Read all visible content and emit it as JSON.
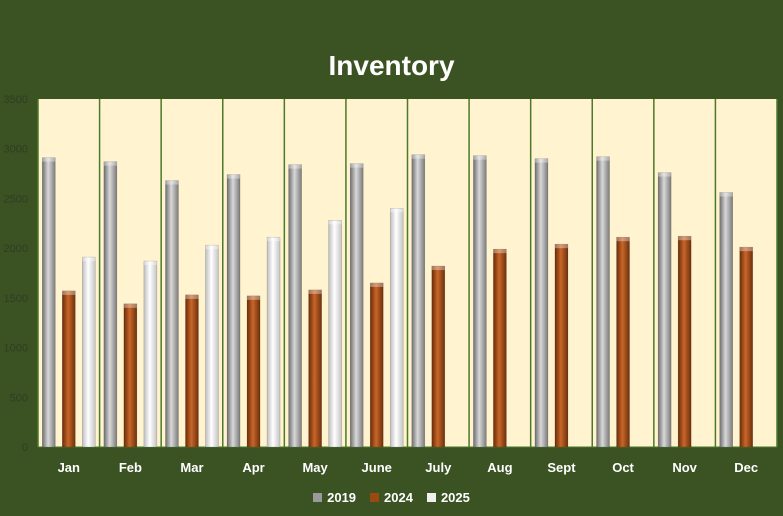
{
  "chart_data": {
    "type": "bar",
    "title": "Inventory",
    "categories": [
      "Jan",
      "Feb",
      "Mar",
      "Apr",
      "May",
      "June",
      "July",
      "Aug",
      "Sept",
      "Oct",
      "Nov",
      "Dec"
    ],
    "series": [
      {
        "name": "2019",
        "color": "#9a9a9a",
        "values": [
          2910,
          2870,
          2680,
          2740,
          2840,
          2850,
          2940,
          2930,
          2900,
          2920,
          2760,
          2560
        ]
      },
      {
        "name": "2024",
        "color": "#9b4812",
        "values": [
          1570,
          1440,
          1530,
          1520,
          1580,
          1650,
          1820,
          1990,
          2040,
          2110,
          2120,
          2010
        ]
      },
      {
        "name": "2025",
        "color": "#f0f0f0",
        "values": [
          1910,
          1870,
          2030,
          2110,
          2280,
          2400,
          null,
          null,
          null,
          null,
          null,
          null
        ]
      }
    ],
    "ylim": [
      0,
      3500
    ],
    "yticks": [
      0,
      500,
      1000,
      1500,
      2000,
      2500,
      3000,
      3500
    ],
    "grid": "vertical separators between categories",
    "legend_position": "bottom",
    "plot_background": "#fff3d0"
  }
}
